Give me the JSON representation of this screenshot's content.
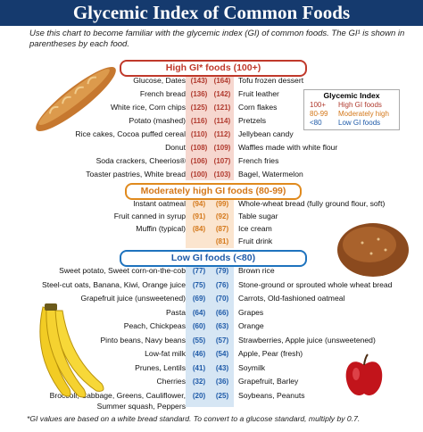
{
  "title": "Glycemic Index of Common Foods",
  "intro": "Use this chart to become familiar with the glycemic index (GI) of common foods. The GI¹ is shown in parentheses by each food.",
  "banners": {
    "high": "High GI* foods (100+)",
    "moderate": "Moderately high GI foods (80-99)",
    "low": "Low GI foods (<80)"
  },
  "legend": {
    "title": "Glycemic Index",
    "rows": [
      {
        "range": "100+",
        "label": "High GI foods",
        "color": "#b03a2e"
      },
      {
        "range": "80-99",
        "label": "Moderately high",
        "color": "#d4781a"
      },
      {
        "range": "<80",
        "label": "Low GI foods",
        "color": "#1e5aa8"
      }
    ]
  },
  "high_rows": [
    {
      "left": "Glucose, Dates",
      "lval": "(143)",
      "rval": "(164)",
      "right": "Tofu frozen dessert"
    },
    {
      "left": "French bread",
      "lval": "(136)",
      "rval": "(142)",
      "right": "Fruit leather"
    },
    {
      "left": "White rice, Corn chips",
      "lval": "(125)",
      "rval": "(121)",
      "right": "Corn flakes"
    },
    {
      "left": "Potato (mashed)",
      "lval": "(116)",
      "rval": "(114)",
      "right": "Pretzels"
    },
    {
      "left": "Rice cakes, Cocoa puffed cereal",
      "lval": "(110)",
      "rval": "(112)",
      "right": "Jellybean candy"
    },
    {
      "left": "Donut",
      "lval": "(108)",
      "rval": "(109)",
      "right": "Waffles made with white flour"
    },
    {
      "left": "Soda crackers, Cheerios®",
      "lval": "(106)",
      "rval": "(107)",
      "right": "French fries"
    },
    {
      "left": "Toaster pastries, White bread",
      "lval": "(100)",
      "rval": "(103)",
      "right": "Bagel, Watermelon"
    }
  ],
  "moderate_rows": [
    {
      "left": "Instant oatmeal",
      "lval": "(94)",
      "rval": "(99)",
      "right": "Whole-wheat bread (fully ground flour, soft)"
    },
    {
      "left": "Fruit canned in syrup",
      "lval": "(91)",
      "rval": "(92)",
      "right": "Table sugar"
    },
    {
      "left": "Muffin (typical)",
      "lval": "(84)",
      "rval": "(87)",
      "right": "Ice cream"
    },
    {
      "left": "",
      "lval": "",
      "rval": "(81)",
      "right": "Fruit drink"
    }
  ],
  "low_rows": [
    {
      "left": "Sweet potato, Sweet corn-on-the-cob",
      "lval": "(77)",
      "rval": "(79)",
      "right": "Brown rice"
    },
    {
      "left": "Steel-cut oats, Banana, Kiwi, Orange juice",
      "lval": "(75)",
      "rval": "(76)",
      "right": "Stone-ground or sprouted whole wheat bread"
    },
    {
      "left": "Grapefruit juice (unsweetened)",
      "lval": "(69)",
      "rval": "(70)",
      "right": "Carrots, Old-fashioned oatmeal"
    },
    {
      "left": "Pasta",
      "lval": "(64)",
      "rval": "(66)",
      "right": "Grapes"
    },
    {
      "left": "Peach, Chickpeas",
      "lval": "(60)",
      "rval": "(63)",
      "right": "Orange"
    },
    {
      "left": "Pinto beans, Navy beans",
      "lval": "(55)",
      "rval": "(57)",
      "right": "Strawberries, Apple juice (unsweetened)"
    },
    {
      "left": "Low-fat milk",
      "lval": "(46)",
      "rval": "(54)",
      "right": "Apple, Pear (fresh)"
    },
    {
      "left": "Prunes, Lentils",
      "lval": "(41)",
      "rval": "(43)",
      "right": "Soymilk"
    },
    {
      "left": "Cherries",
      "lval": "(32)",
      "rval": "(36)",
      "right": "Grapefruit, Barley"
    },
    {
      "left": "Broccoli, Cabbage, Greens, Cauliflower,",
      "left2": "Summer squash, Peppers",
      "lval": "(20)",
      "rval": "(25)",
      "right": "Soybeans, Peanuts"
    }
  ],
  "footnote": "*GI values are based on a white bread standard. To convert to a glucose standard, multiply by 0.7."
}
